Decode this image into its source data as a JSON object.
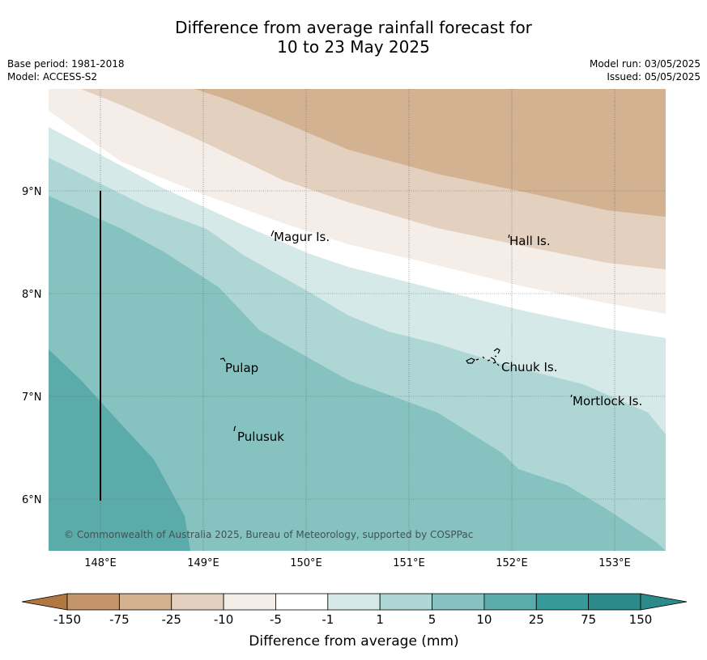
{
  "title": {
    "line1": "Difference from average rainfall forecast for",
    "line2": "10 to 23 May 2025"
  },
  "meta": {
    "base_period": "Base period: 1981-2018",
    "model": "Model: ACCESS-S2",
    "model_run": "Model run: 03/05/2025",
    "issued": "Issued: 05/05/2025"
  },
  "map": {
    "lon_ticks": [
      "148°E",
      "149°E",
      "150°E",
      "151°E",
      "152°E",
      "153°E"
    ],
    "lat_ticks": [
      "9°N",
      "8°N",
      "7°N",
      "6°N"
    ],
    "places": [
      "Magur Is.",
      "Hall Is.",
      "Pulap",
      "Chuuk Is.",
      "Mortlock Is.",
      "Pulusuk"
    ],
    "copyright": "© Commonwealth of Australia 2025, Bureau of Meteorology, supported by COSPPac"
  },
  "colorbar": {
    "ticks": [
      "-150",
      "-75",
      "-25",
      "-10",
      "-5",
      "-1",
      "1",
      "5",
      "10",
      "25",
      "75",
      "150"
    ],
    "colors": [
      "#b07840",
      "#c49568",
      "#d2b290",
      "#e3d0be",
      "#f5ede8",
      "#ffffff",
      "#d5e9e8",
      "#add6d5",
      "#85c2c0",
      "#5aabaa",
      "#38999a",
      "#2d8a8a"
    ],
    "title": "Difference from average (mm)"
  }
}
